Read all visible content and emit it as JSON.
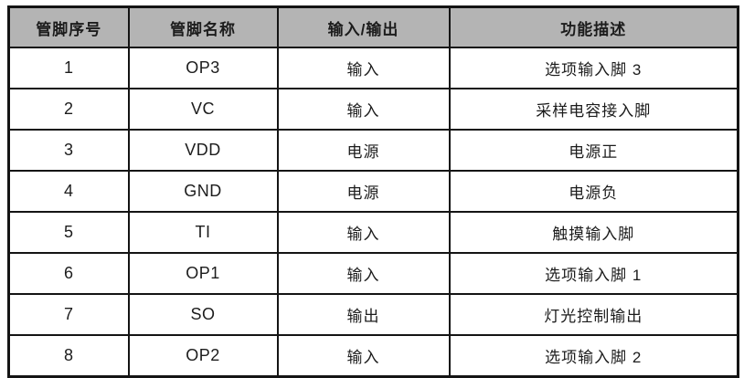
{
  "table": {
    "title": "pin-description-table",
    "headers": {
      "pin_number": "管脚序号",
      "pin_name": "管脚名称",
      "io": "输入/输出",
      "description": "功能描述"
    },
    "rows": [
      {
        "pin_number": "1",
        "pin_name": "OP3",
        "io": "输入",
        "description": "选项输入脚 3"
      },
      {
        "pin_number": "2",
        "pin_name": "VC",
        "io": "输入",
        "description": "采样电容接入脚"
      },
      {
        "pin_number": "3",
        "pin_name": "VDD",
        "io": "电源",
        "description": "电源正"
      },
      {
        "pin_number": "4",
        "pin_name": "GND",
        "io": "电源",
        "description": "电源负"
      },
      {
        "pin_number": "5",
        "pin_name": "TI",
        "io": "输入",
        "description": "触摸输入脚"
      },
      {
        "pin_number": "6",
        "pin_name": "OP1",
        "io": "输入",
        "description": "选项输入脚 1"
      },
      {
        "pin_number": "7",
        "pin_name": "SO",
        "io": "输出",
        "description": "灯光控制输出"
      },
      {
        "pin_number": "8",
        "pin_name": "OP2",
        "io": "输入",
        "description": "选项输入脚 2"
      }
    ],
    "colors": {
      "header_background": "#b4b4b4",
      "border": "#141414",
      "text": "#1c1c1c",
      "row_background": "#ffffff"
    }
  }
}
